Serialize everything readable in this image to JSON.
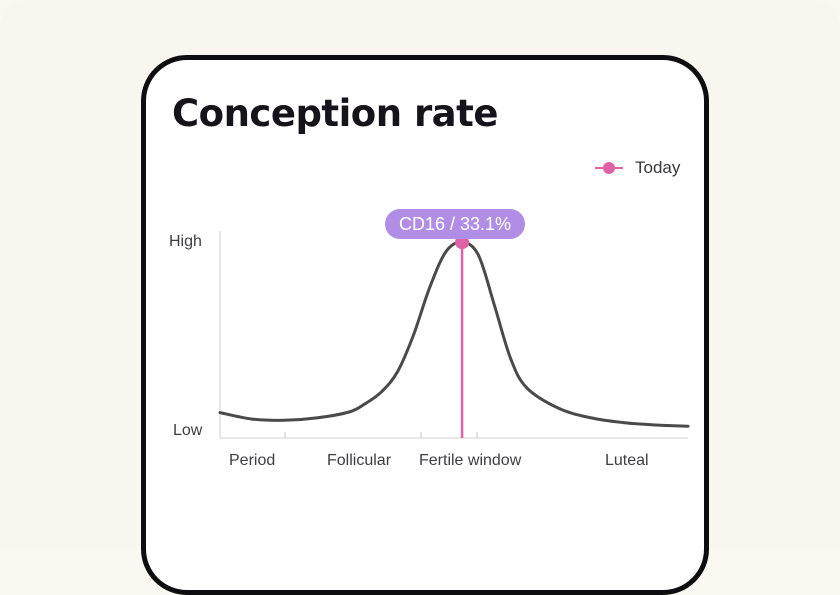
{
  "card": {
    "title": "Conception rate"
  },
  "legend": {
    "label": "Today",
    "icon": "pink-dot-line-icon"
  },
  "tooltip": {
    "day": "CD16",
    "separator": " / ",
    "rate": "33.1%"
  },
  "colors": {
    "curve": "#4a4a4a",
    "today_marker": "#e062a6",
    "tooltip_background": "#b18ee6",
    "axis": "#d0d0d0"
  },
  "chart_data": {
    "type": "line",
    "ylabel": "",
    "xlabel": "",
    "y_tick_labels": [
      "High",
      "Low"
    ],
    "x_tick_labels": [
      "Period",
      "Follicular",
      "Fertile window",
      "Luteal"
    ],
    "today": {
      "cycle_day": 16,
      "label": "CD16",
      "rate_percent": 33.1
    },
    "series": [
      {
        "x": [
          1,
          3,
          5,
          7,
          9,
          10,
          11,
          12,
          13,
          14,
          15,
          16,
          17,
          18,
          19,
          20,
          22,
          24,
          26,
          28,
          30
        ],
        "values": [
          4.3,
          3.2,
          3.0,
          3.4,
          4.4,
          5.8,
          7.8,
          11.2,
          17.5,
          25.5,
          31.5,
          33.1,
          31.0,
          22.5,
          13.5,
          8.5,
          5.0,
          3.4,
          2.6,
          2.2,
          2.0
        ]
      }
    ],
    "xlim": [
      1,
      30
    ],
    "ylim": [
      0,
      35
    ]
  }
}
